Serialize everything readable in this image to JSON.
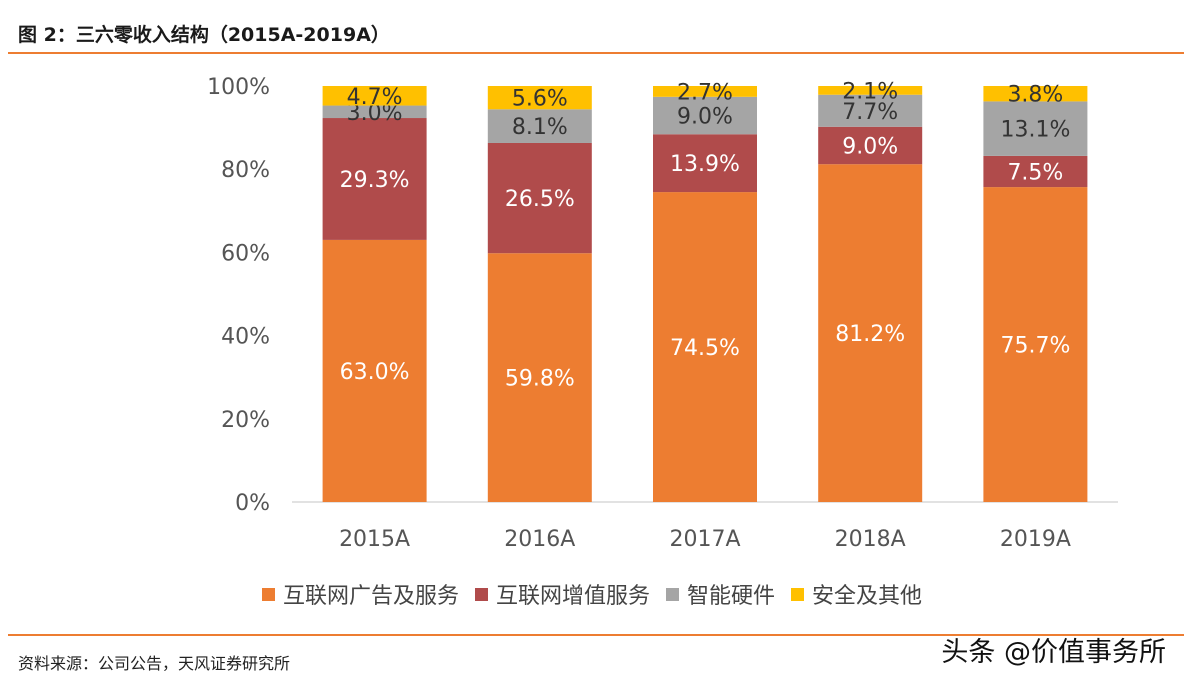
{
  "header": {
    "title": "图 2：三六零收入结构（2015A-2019A）"
  },
  "footer": {
    "source": "资料来源：公司公告，天风证券研究所",
    "watermark": "头条 @价值事务所"
  },
  "colors": {
    "accent": "#ED7D31"
  },
  "chart_data": {
    "type": "bar",
    "stacked": true,
    "categories": [
      "2015A",
      "2016A",
      "2017A",
      "2018A",
      "2019A"
    ],
    "y_ticks": [
      "0%",
      "20%",
      "40%",
      "60%",
      "80%",
      "100%"
    ],
    "ylim": [
      0,
      100
    ],
    "legend_position": "bottom",
    "series": [
      {
        "name": "互联网广告及服务",
        "color": "#ED7D31",
        "values": [
          63.0,
          59.8,
          74.5,
          81.2,
          75.7
        ],
        "labels": [
          "63.0%",
          "59.8%",
          "74.5%",
          "81.2%",
          "75.7%"
        ]
      },
      {
        "name": "互联网增值服务",
        "color": "#B04B4B",
        "values": [
          29.3,
          26.5,
          13.9,
          9.0,
          7.5
        ],
        "labels": [
          "29.3%",
          "26.5%",
          "13.9%",
          "9.0%",
          "7.5%"
        ]
      },
      {
        "name": "智能硬件",
        "color": "#A5A5A5",
        "values": [
          3.0,
          8.1,
          9.0,
          7.7,
          13.1
        ],
        "labels": [
          "3.0%",
          "8.1%",
          "9.0%",
          "7.7%",
          "13.1%"
        ]
      },
      {
        "name": "安全及其他",
        "color": "#FFC000",
        "values": [
          4.7,
          5.6,
          2.7,
          2.1,
          3.8
        ],
        "labels": [
          "4.7%",
          "5.6%",
          "2.7%",
          "2.1%",
          "3.8%"
        ]
      }
    ]
  }
}
